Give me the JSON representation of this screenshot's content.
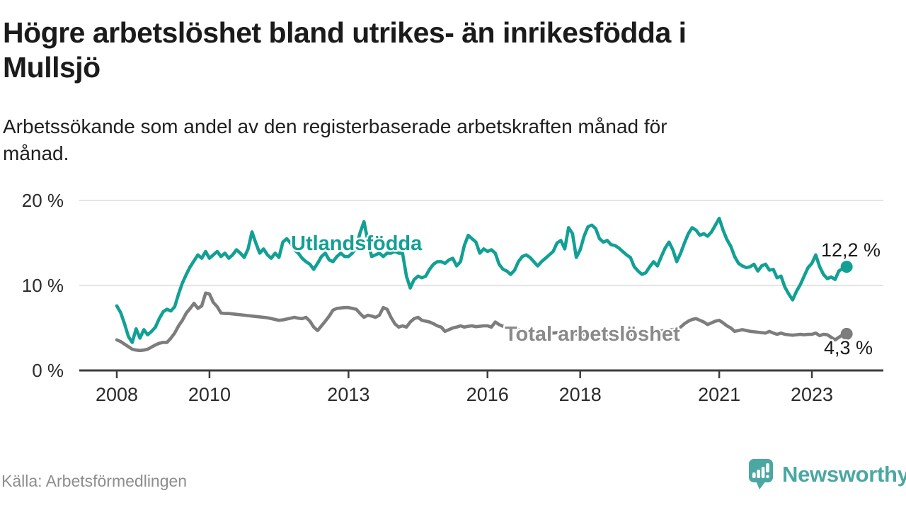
{
  "title": {
    "lines": [
      "Högre arbetslöshet bland utrikes- än inrikesfödda i",
      "Mullsjö"
    ]
  },
  "subtitle": {
    "lines": [
      "Arbetssökande som andel av den registerbaserade arbetskraften månad för",
      "månad."
    ]
  },
  "source": "Källa: Arbetsförmedlingen",
  "brand": {
    "name": "Newsworthy",
    "color": "#4ba7a2"
  },
  "colors": {
    "foreign_born_line": "#12a094",
    "total_line": "#7d7d7d",
    "total_label": "#8a8a8a",
    "end_label_text": "#1a1a1a",
    "grid": "#dcdcdc",
    "axis": "#3d3d3d",
    "axis_text": "#2b2b2b",
    "background": "#ffffff"
  },
  "chart_data": {
    "type": "line",
    "unit": "%",
    "frequency": "monthly",
    "x_start": "2008-01",
    "x_end": "2023-10",
    "ylim": [
      0,
      21
    ],
    "grid": "horizontal",
    "legend_position": "inline-labels",
    "y_axis": {
      "ticks": [
        {
          "label": "20 %",
          "value": 20
        },
        {
          "label": "10 %",
          "value": 10
        },
        {
          "label": "0 %",
          "value": 0
        }
      ]
    },
    "x_axis": {
      "ticks": [
        {
          "label": "2008",
          "year": 2008
        },
        {
          "label": "2010",
          "year": 2010
        },
        {
          "label": "2013",
          "year": 2013
        },
        {
          "label": "2016",
          "year": 2016
        },
        {
          "label": "2018",
          "year": 2018
        },
        {
          "label": "2021",
          "year": 2021
        },
        {
          "label": "2023",
          "year": 2023
        }
      ]
    },
    "series": [
      {
        "name": "Utlandsfödda",
        "color": "#12a094",
        "end_label": "12,2 %",
        "last_value": 12.2,
        "values": [
          7.6,
          6.8,
          5.5,
          4.0,
          3.3,
          4.9,
          3.8,
          4.8,
          4.2,
          4.6,
          5.1,
          6.1,
          6.9,
          7.2,
          7.0,
          7.5,
          9.0,
          10.3,
          11.3,
          12.2,
          12.9,
          13.6,
          13.2,
          14.0,
          13.2,
          13.6,
          14.0,
          13.4,
          13.8,
          13.2,
          13.6,
          14.2,
          13.8,
          13.3,
          14.3,
          16.3,
          15.0,
          13.8,
          14.3,
          13.6,
          13.2,
          13.8,
          13.3,
          15.1,
          15.5,
          15.0,
          14.2,
          13.8,
          13.2,
          12.8,
          12.5,
          11.9,
          12.6,
          13.4,
          13.8,
          13.0,
          12.8,
          13.4,
          13.8,
          13.4,
          13.4,
          13.8,
          14.5,
          16.2,
          17.5,
          15.3,
          13.4,
          13.6,
          13.8,
          13.4,
          13.8,
          13.8,
          14.0,
          13.8,
          13.8,
          11.1,
          9.7,
          10.7,
          11.1,
          10.9,
          11.1,
          11.9,
          12.5,
          12.8,
          12.8,
          12.6,
          13.0,
          13.2,
          12.3,
          12.8,
          14.7,
          15.9,
          15.5,
          15.1,
          13.8,
          14.3,
          14.0,
          14.2,
          13.8,
          12.5,
          11.9,
          11.7,
          11.3,
          11.8,
          12.8,
          13.4,
          13.6,
          13.3,
          12.8,
          12.3,
          12.8,
          13.2,
          13.6,
          14.0,
          15.0,
          15.3,
          14.3,
          16.8,
          16.1,
          13.3,
          14.2,
          15.8,
          16.9,
          17.1,
          16.7,
          15.5,
          15.1,
          15.3,
          14.8,
          14.7,
          14.4,
          14.0,
          13.6,
          13.3,
          12.2,
          11.7,
          11.3,
          11.5,
          12.2,
          12.8,
          12.3,
          13.4,
          14.4,
          15.1,
          14.2,
          12.8,
          13.8,
          15.0,
          16.1,
          16.8,
          16.5,
          15.9,
          16.1,
          15.8,
          16.3,
          17.1,
          17.9,
          16.5,
          15.4,
          14.6,
          13.4,
          12.6,
          12.3,
          12.1,
          12.2,
          12.5,
          11.7,
          12.3,
          12.5,
          11.8,
          11.9,
          10.9,
          11.1,
          9.8,
          9.0,
          8.3,
          9.3,
          10.1,
          11.1,
          12.1,
          12.6,
          13.6,
          12.2,
          11.3,
          10.8,
          11.0,
          10.7,
          11.7,
          12.0,
          12.2
        ]
      },
      {
        "name": "Total arbetslöshet",
        "color": "#7d7d7d",
        "end_label": "4,3 %",
        "last_value": 4.3,
        "values": [
          3.6,
          3.4,
          3.1,
          2.8,
          2.5,
          2.4,
          2.35,
          2.4,
          2.5,
          2.75,
          3.0,
          3.2,
          3.3,
          3.3,
          3.8,
          4.4,
          5.25,
          5.9,
          6.75,
          7.3,
          7.9,
          7.3,
          7.6,
          9.1,
          9.0,
          8.0,
          7.5,
          6.75,
          6.7,
          6.7,
          6.65,
          6.6,
          6.55,
          6.5,
          6.45,
          6.4,
          6.35,
          6.3,
          6.25,
          6.2,
          6.1,
          6.0,
          5.9,
          5.95,
          6.05,
          6.15,
          6.25,
          6.15,
          6.1,
          6.25,
          5.8,
          5.1,
          4.7,
          5.25,
          5.8,
          6.4,
          7.1,
          7.3,
          7.35,
          7.4,
          7.4,
          7.3,
          7.2,
          6.7,
          6.25,
          6.5,
          6.4,
          6.25,
          6.5,
          7.4,
          7.2,
          6.25,
          5.5,
          5.1,
          5.25,
          5.1,
          5.7,
          6.1,
          6.25,
          5.9,
          5.8,
          5.7,
          5.5,
          5.25,
          5.1,
          4.6,
          4.8,
          5.0,
          5.1,
          5.25,
          5.1,
          5.2,
          5.25,
          5.15,
          5.2,
          5.25,
          5.25,
          5.1,
          5.7,
          5.4,
          5.2,
          5.0,
          4.8,
          4.9,
          4.8,
          4.75,
          4.7,
          4.65,
          4.6,
          4.55,
          4.5,
          4.5,
          4.45,
          4.4,
          4.45,
          4.5,
          4.4,
          4.35,
          4.3,
          4.3,
          4.3,
          4.25,
          4.3,
          4.35,
          4.3,
          4.25,
          4.2,
          4.25,
          4.3,
          4.25,
          4.2,
          4.2,
          4.2,
          4.25,
          4.3,
          4.35,
          4.4,
          4.45,
          4.5,
          4.55,
          4.6,
          4.65,
          4.7,
          4.75,
          4.8,
          4.9,
          5.1,
          5.5,
          5.8,
          6.0,
          6.1,
          5.9,
          5.7,
          5.4,
          5.6,
          5.8,
          5.9,
          5.6,
          5.25,
          5.0,
          4.6,
          4.7,
          4.8,
          4.7,
          4.6,
          4.55,
          4.5,
          4.45,
          4.4,
          4.6,
          4.4,
          4.25,
          4.4,
          4.25,
          4.2,
          4.15,
          4.2,
          4.25,
          4.2,
          4.25,
          4.25,
          4.4,
          4.1,
          4.25,
          4.2,
          3.9,
          3.6,
          3.9,
          4.2,
          4.3
        ]
      }
    ]
  }
}
